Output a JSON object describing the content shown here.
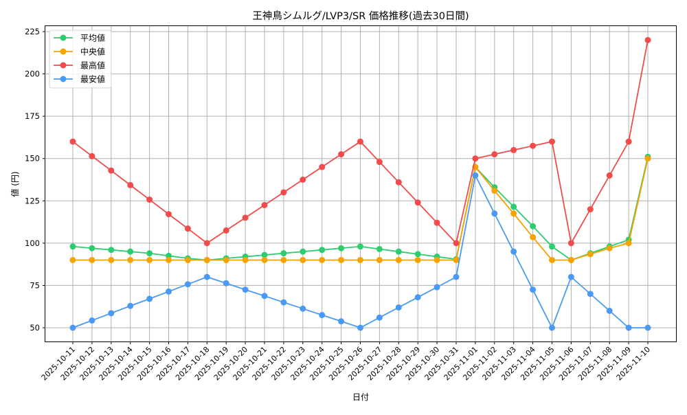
{
  "chart_data": {
    "type": "line",
    "title": "王神鳥シムルグ/LVP3/SR 価格推移(過去30日間)",
    "xlabel": "日付",
    "ylabel": "値 (円)",
    "ylim": [
      42,
      229
    ],
    "yticks": [
      50,
      75,
      100,
      125,
      150,
      175,
      200,
      225
    ],
    "grid": true,
    "legend_position": "upper left",
    "categories": [
      "2025-10-11",
      "2025-10-12",
      "2025-10-13",
      "2025-10-14",
      "2025-10-15",
      "2025-10-16",
      "2025-10-17",
      "2025-10-18",
      "2025-10-19",
      "2025-10-20",
      "2025-10-21",
      "2025-10-22",
      "2025-10-23",
      "2025-10-24",
      "2025-10-25",
      "2025-10-26",
      "2025-10-27",
      "2025-10-28",
      "2025-10-29",
      "2025-10-30",
      "2025-10-31",
      "2025-11-01",
      "2025-11-02",
      "2025-11-03",
      "2025-11-04",
      "2025-11-05",
      "2025-11-06",
      "2025-11-07",
      "2025-11-08",
      "2025-11-09",
      "2025-11-10"
    ],
    "series": [
      {
        "name": "平均値",
        "color": "#2ecc71",
        "values": [
          98,
          97,
          96,
          95,
          94,
          92.5,
          91,
          90,
          91,
          92,
          93,
          94,
          95,
          96,
          97,
          98,
          96.5,
          95,
          93.5,
          92,
          90.5,
          145,
          133,
          121.5,
          110,
          98,
          90,
          94,
          98,
          102,
          151
        ]
      },
      {
        "name": "中央値",
        "color": "#f5a300",
        "values": [
          90,
          90,
          90,
          90,
          90,
          90,
          90,
          90,
          90,
          90,
          90,
          90,
          90,
          90,
          90,
          90,
          90,
          90,
          90,
          90,
          90,
          145,
          131,
          117.5,
          103.5,
          90,
          90,
          93.5,
          97,
          100,
          150
        ]
      },
      {
        "name": "最高値",
        "color": "#f24b4b",
        "values": [
          160,
          151.4,
          142.9,
          134.3,
          125.7,
          117.1,
          108.6,
          100,
          107.5,
          115,
          122.5,
          130,
          137.5,
          145,
          152.5,
          160,
          148,
          136,
          124,
          112,
          100,
          150,
          152.5,
          155,
          157.5,
          160,
          100,
          120,
          140,
          160,
          220
        ]
      },
      {
        "name": "最安値",
        "color": "#4a9af5",
        "values": [
          50,
          54.3,
          58.6,
          62.9,
          67.1,
          71.4,
          75.7,
          80,
          76.3,
          72.5,
          68.8,
          65,
          61.3,
          57.5,
          53.8,
          50,
          56,
          62,
          68,
          74,
          80,
          140,
          117.5,
          95,
          72.5,
          50,
          80,
          70,
          60,
          50,
          50
        ]
      }
    ]
  }
}
